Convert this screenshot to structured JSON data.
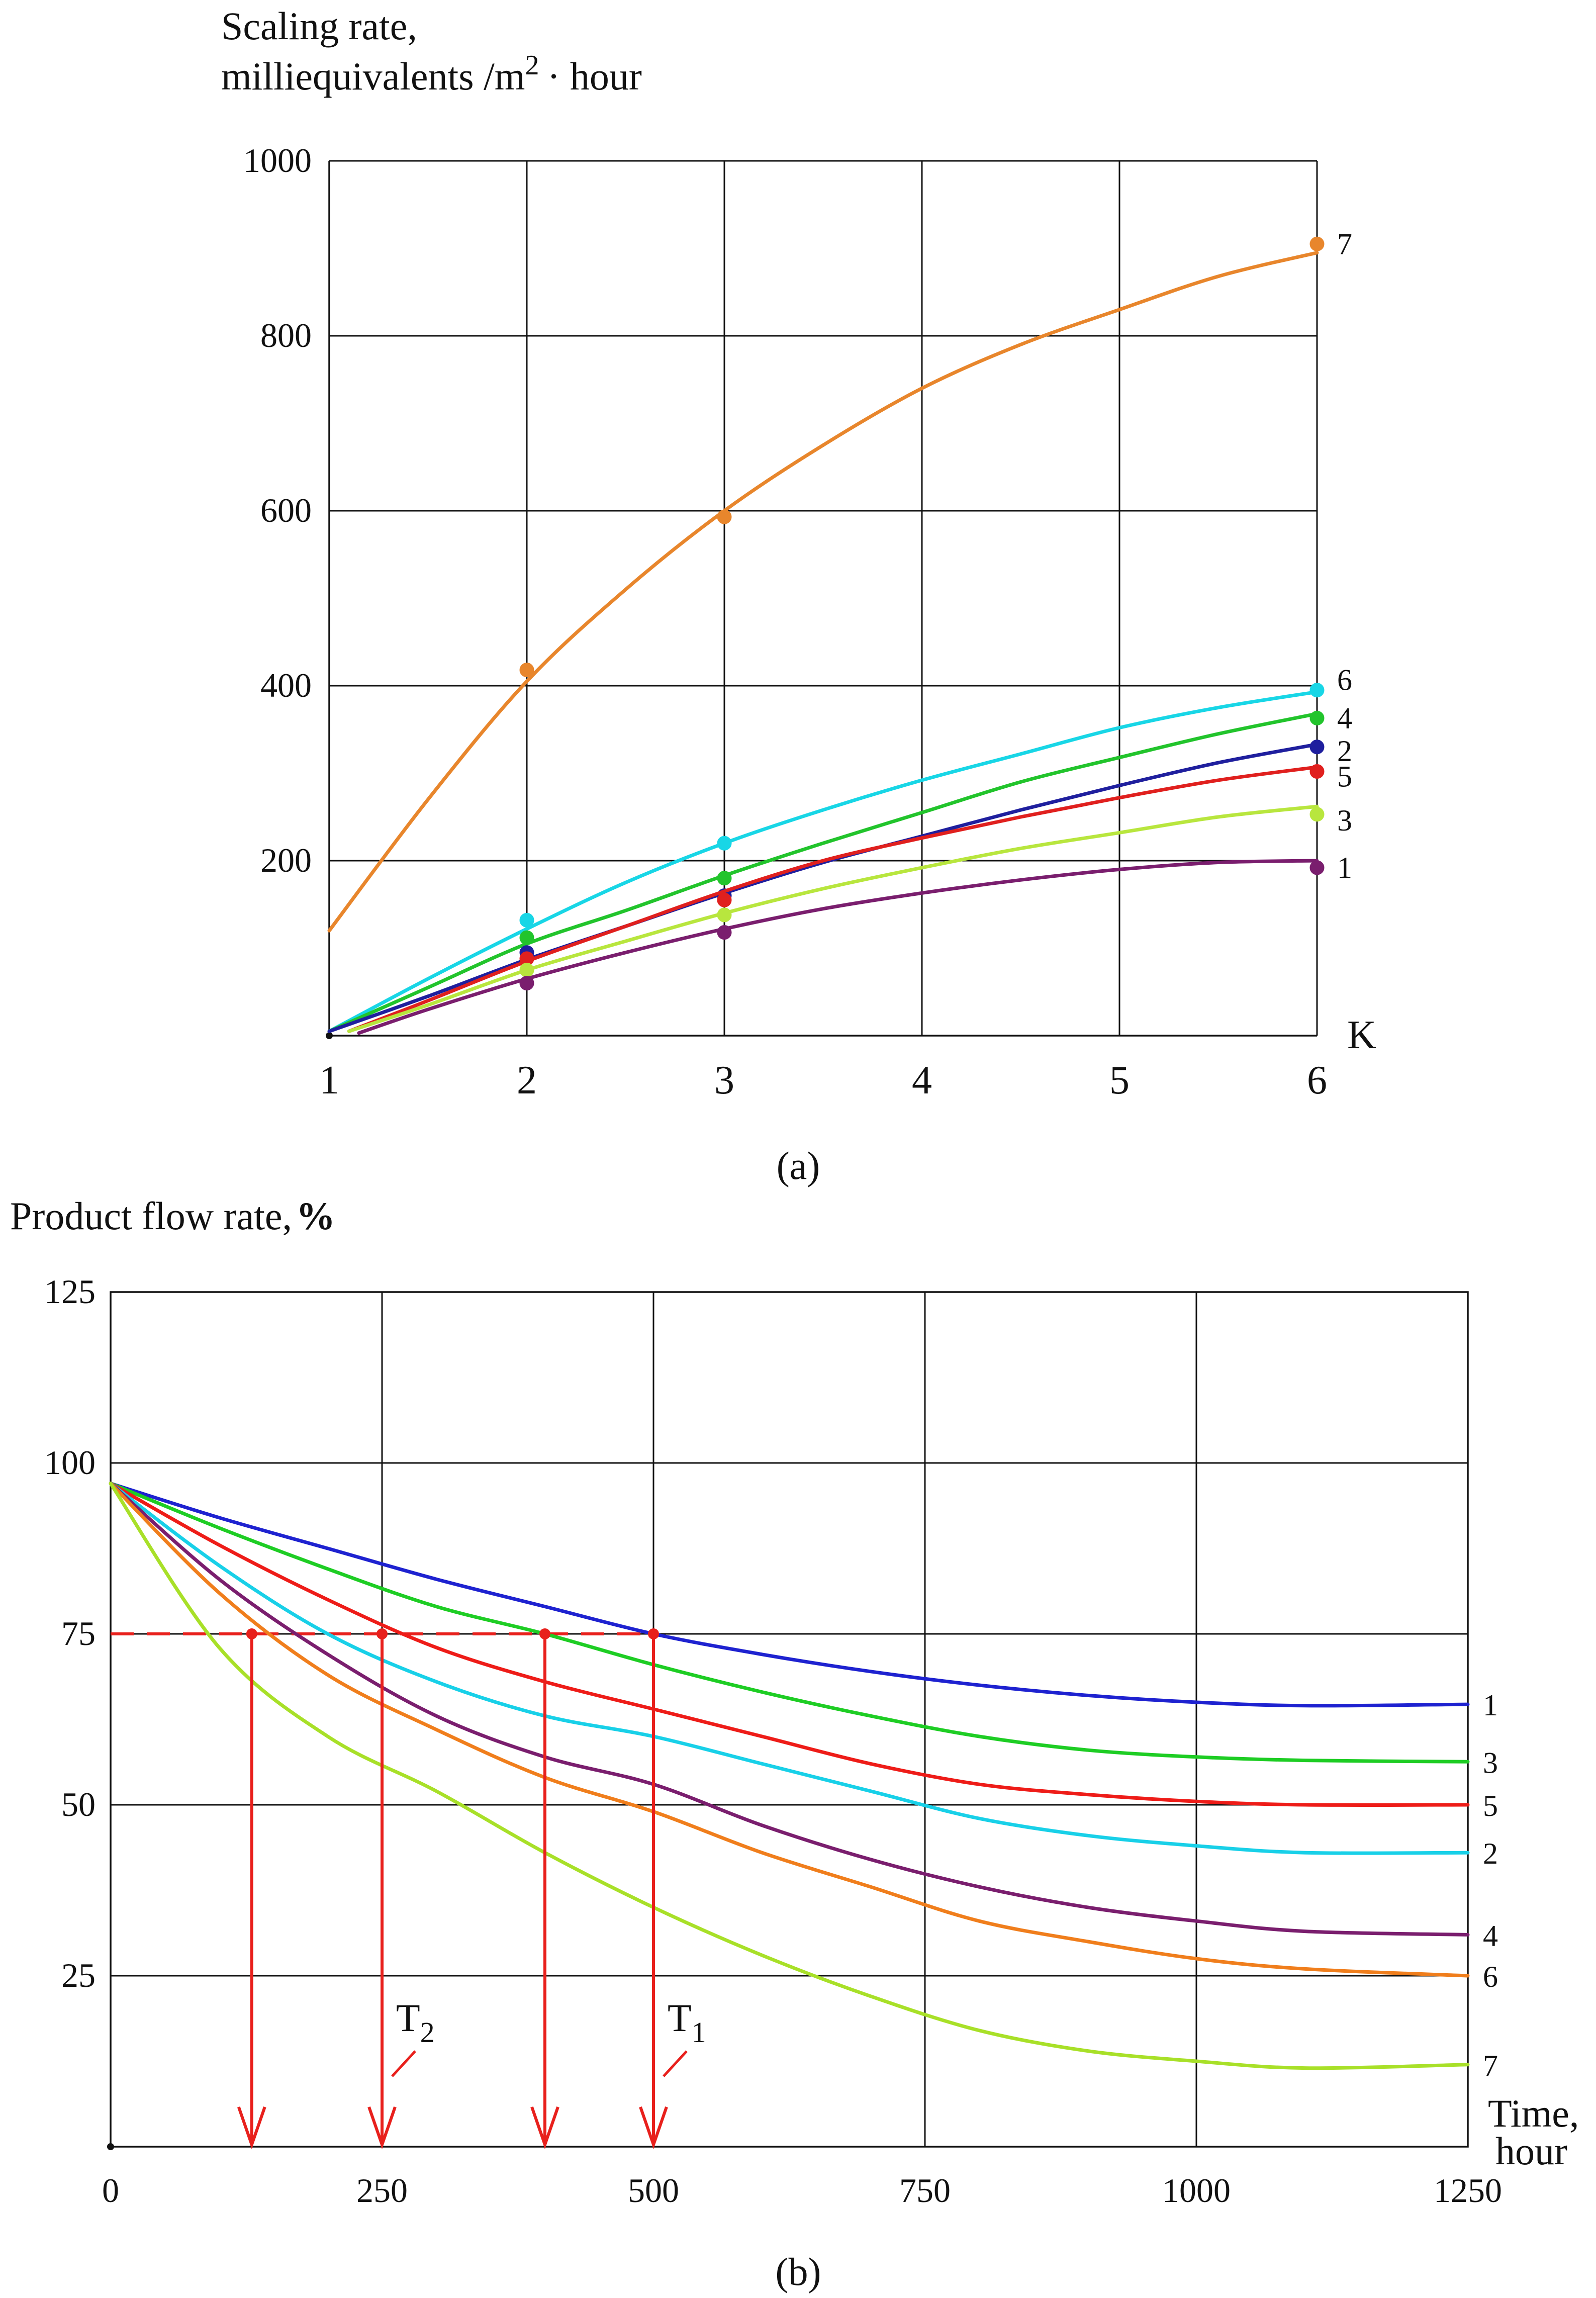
{
  "chart_data": [
    {
      "panel": "a",
      "type": "line",
      "ylabel_line1": "Scaling rate,",
      "ylabel_line2": "milliequivalents /m",
      "ylabel_sup": "2",
      "ylabel_tail": "· hour",
      "xlabel": "K",
      "caption": "(a)",
      "x_ticks": [
        1,
        2,
        3,
        4,
        5,
        6
      ],
      "x_tick_labels": [
        "1",
        "2",
        "3",
        "4",
        "5",
        "6"
      ],
      "y_ticks": [
        200,
        400,
        600,
        800,
        1000
      ],
      "y_tick_labels": [
        "200",
        "400",
        "600",
        "800",
        "1000"
      ],
      "xlim": [
        1,
        6
      ],
      "ylim": [
        0,
        1000
      ],
      "grid": true,
      "series": [
        {
          "name": "7",
          "color": "#e8862c",
          "start_x": 1.0,
          "line": [
            [
              1.0,
              120
            ],
            [
              1.5,
              270
            ],
            [
              2.0,
              405
            ],
            [
              2.5,
              510
            ],
            [
              3.0,
              600
            ],
            [
              3.5,
              675
            ],
            [
              4.0,
              740
            ],
            [
              4.5,
              790
            ],
            [
              5.0,
              830
            ],
            [
              5.5,
              868
            ],
            [
              6.0,
              895
            ]
          ],
          "points": [
            [
              2,
              418
            ],
            [
              3,
              593
            ],
            [
              6,
              905
            ]
          ]
        },
        {
          "name": "6",
          "color": "#18d6e6",
          "start_x": 1.0,
          "line": [
            [
              1.0,
              5
            ],
            [
              1.5,
              65
            ],
            [
              2.0,
              122
            ],
            [
              2.5,
              175
            ],
            [
              3.0,
              220
            ],
            [
              3.5,
              258
            ],
            [
              4.0,
              292
            ],
            [
              4.5,
              322
            ],
            [
              5.0,
              352
            ],
            [
              5.5,
              375
            ],
            [
              6.0,
              393
            ]
          ],
          "points": [
            [
              2,
              132
            ],
            [
              3,
              220
            ],
            [
              6,
              395
            ]
          ]
        },
        {
          "name": "4",
          "color": "#22c42c",
          "start_x": 1.0,
          "line": [
            [
              1.0,
              5
            ],
            [
              1.5,
              55
            ],
            [
              2.0,
              105
            ],
            [
              2.5,
              143
            ],
            [
              3.0,
              183
            ],
            [
              3.5,
              220
            ],
            [
              4.0,
              255
            ],
            [
              4.5,
              290
            ],
            [
              5.0,
              318
            ],
            [
              5.5,
              345
            ],
            [
              6.0,
              368
            ]
          ],
          "points": [
            [
              2,
              112
            ],
            [
              3,
              180
            ],
            [
              6,
              363
            ]
          ]
        },
        {
          "name": "2",
          "color": "#1f1f9e",
          "start_x": 1.0,
          "line": [
            [
              1.0,
              5
            ],
            [
              1.5,
              45
            ],
            [
              2.0,
              87
            ],
            [
              2.5,
              125
            ],
            [
              3.0,
              163
            ],
            [
              3.5,
              198
            ],
            [
              4.0,
              228
            ],
            [
              4.5,
              258
            ],
            [
              5.0,
              286
            ],
            [
              5.5,
              312
            ],
            [
              6.0,
              333
            ]
          ],
          "points": [
            [
              2,
              95
            ],
            [
              3,
              160
            ],
            [
              6,
              330
            ]
          ]
        },
        {
          "name": "5",
          "color": "#e0201e",
          "start_x": 1.1,
          "line": [
            [
              1.1,
              5
            ],
            [
              1.5,
              40
            ],
            [
              2.0,
              85
            ],
            [
              2.5,
              125
            ],
            [
              3.0,
              165
            ],
            [
              3.5,
              200
            ],
            [
              4.0,
              226
            ],
            [
              4.5,
              250
            ],
            [
              5.0,
              272
            ],
            [
              5.5,
              292
            ],
            [
              6.0,
              307
            ]
          ],
          "points": [
            [
              2,
              88
            ],
            [
              3,
              155
            ],
            [
              6,
              302
            ]
          ]
        },
        {
          "name": "3",
          "color": "#b8e63e",
          "start_x": 1.1,
          "line": [
            [
              1.1,
              5
            ],
            [
              1.5,
              35
            ],
            [
              2.0,
              75
            ],
            [
              2.5,
              108
            ],
            [
              3.0,
              140
            ],
            [
              3.5,
              168
            ],
            [
              4.0,
              192
            ],
            [
              4.5,
              214
            ],
            [
              5.0,
              232
            ],
            [
              5.5,
              250
            ],
            [
              6.0,
              262
            ]
          ],
          "points": [
            [
              2,
              75
            ],
            [
              3,
              138
            ],
            [
              6,
              253
            ]
          ]
        },
        {
          "name": "1",
          "color": "#7a1e6e",
          "start_x": 1.15,
          "line": [
            [
              1.15,
              3
            ],
            [
              1.5,
              30
            ],
            [
              2.0,
              65
            ],
            [
              2.5,
              95
            ],
            [
              3.0,
              122
            ],
            [
              3.5,
              145
            ],
            [
              4.0,
              163
            ],
            [
              4.5,
              178
            ],
            [
              5.0,
              190
            ],
            [
              5.5,
              198
            ],
            [
              6.0,
              200
            ]
          ],
          "points": [
            [
              2,
              60
            ],
            [
              3,
              118
            ],
            [
              6,
              192
            ]
          ]
        }
      ]
    },
    {
      "panel": "b",
      "type": "line",
      "ylabel": "Product flow rate,",
      "ylabel_unit": "%",
      "xlabel_line1": "Time,",
      "xlabel_line2": "hour",
      "caption": "(b)",
      "x_ticks": [
        0,
        250,
        500,
        750,
        1000,
        1250
      ],
      "x_tick_labels": [
        "0",
        "250",
        "500",
        "750",
        "1000",
        "1250"
      ],
      "y_ticks": [
        25,
        50,
        75,
        100,
        125
      ],
      "y_tick_labels": [
        "25",
        "50",
        "75",
        "100",
        "125"
      ],
      "xlim": [
        0,
        1250
      ],
      "ylim": [
        0,
        125
      ],
      "grid": true,
      "series": [
        {
          "name": "1",
          "color": "#1e22d0",
          "values": [
            [
              0,
              97
            ],
            [
              100,
              92
            ],
            [
              200,
              87.5
            ],
            [
              300,
              83
            ],
            [
              400,
              79
            ],
            [
              500,
              75
            ],
            [
              600,
              72
            ],
            [
              700,
              69.5
            ],
            [
              800,
              67.5
            ],
            [
              900,
              66
            ],
            [
              1000,
              65
            ],
            [
              1100,
              64.5
            ],
            [
              1250,
              64.7
            ]
          ]
        },
        {
          "name": "3",
          "color": "#1ecd24",
          "values": [
            [
              0,
              97
            ],
            [
              100,
              90.5
            ],
            [
              200,
              84.5
            ],
            [
              300,
              79
            ],
            [
              400,
              75
            ],
            [
              500,
              70.5
            ],
            [
              600,
              66.5
            ],
            [
              700,
              63
            ],
            [
              800,
              60
            ],
            [
              900,
              58
            ],
            [
              1000,
              57
            ],
            [
              1100,
              56.5
            ],
            [
              1250,
              56.3
            ]
          ]
        },
        {
          "name": "5",
          "color": "#ee1c18",
          "values": [
            [
              0,
              97
            ],
            [
              100,
              88
            ],
            [
              200,
              80
            ],
            [
              300,
              73
            ],
            [
              400,
              68
            ],
            [
              500,
              64
            ],
            [
              600,
              60
            ],
            [
              700,
              56
            ],
            [
              800,
              53
            ],
            [
              900,
              51.5
            ],
            [
              1000,
              50.5
            ],
            [
              1100,
              50
            ],
            [
              1250,
              50
            ]
          ]
        },
        {
          "name": "2",
          "color": "#18d0e8",
          "values": [
            [
              0,
              97
            ],
            [
              100,
              85
            ],
            [
              200,
              75
            ],
            [
              300,
              68
            ],
            [
              400,
              63
            ],
            [
              500,
              60
            ],
            [
              600,
              56
            ],
            [
              700,
              52
            ],
            [
              800,
              48
            ],
            [
              900,
              45.5
            ],
            [
              1000,
              44
            ],
            [
              1100,
              43
            ],
            [
              1250,
              43
            ]
          ]
        },
        {
          "name": "4",
          "color": "#7a1e6e",
          "values": [
            [
              0,
              97
            ],
            [
              100,
              83
            ],
            [
              200,
              72
            ],
            [
              300,
              63
            ],
            [
              400,
              57
            ],
            [
              500,
              53
            ],
            [
              600,
              47
            ],
            [
              700,
              42
            ],
            [
              800,
              38
            ],
            [
              900,
              35
            ],
            [
              1000,
              33
            ],
            [
              1100,
              31.5
            ],
            [
              1250,
              31
            ]
          ]
        },
        {
          "name": "6",
          "color": "#f07e1c",
          "values": [
            [
              0,
              97
            ],
            [
              100,
              81
            ],
            [
              200,
              69
            ],
            [
              300,
              61
            ],
            [
              400,
              54
            ],
            [
              500,
              49
            ],
            [
              600,
              43
            ],
            [
              700,
              38
            ],
            [
              800,
              33
            ],
            [
              900,
              30
            ],
            [
              1000,
              27.5
            ],
            [
              1100,
              26
            ],
            [
              1250,
              25
            ]
          ]
        },
        {
          "name": "7",
          "color": "#a8e028",
          "values": [
            [
              0,
              97
            ],
            [
              100,
              73
            ],
            [
              200,
              60
            ],
            [
              300,
              52
            ],
            [
              400,
              43
            ],
            [
              500,
              35
            ],
            [
              600,
              28
            ],
            [
              700,
              22
            ],
            [
              800,
              17
            ],
            [
              900,
              14
            ],
            [
              1000,
              12.5
            ],
            [
              1100,
              11.5
            ],
            [
              1250,
              12
            ]
          ]
        }
      ],
      "threshold": {
        "y": 75,
        "x_from": 0,
        "x_to": 500,
        "color": "#e8201c"
      },
      "arrows": [
        {
          "x": 130,
          "label": ""
        },
        {
          "x": 250,
          "label": "T",
          "sub": "2"
        },
        {
          "x": 400,
          "label": ""
        },
        {
          "x": 500,
          "label": "T",
          "sub": "1"
        }
      ]
    }
  ]
}
